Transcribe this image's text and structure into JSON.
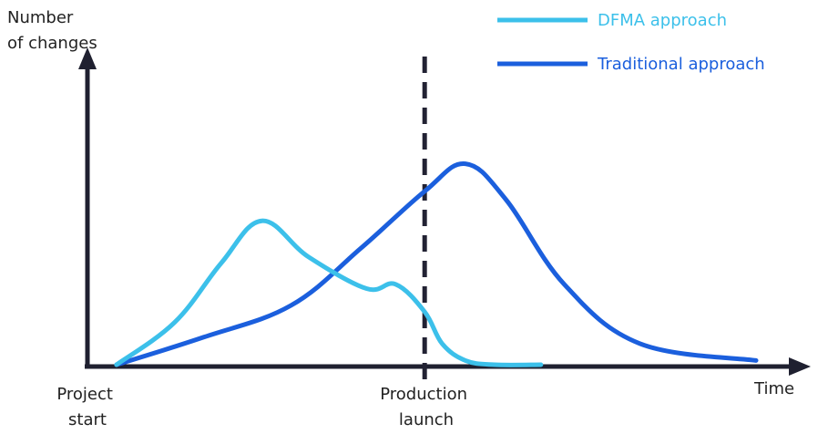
{
  "chart_data": {
    "type": "line",
    "y_axis_label": [
      "Number",
      "of changes"
    ],
    "x_axis_label": "Time",
    "x_ticks": [
      {
        "lines": [
          "Project",
          "start"
        ],
        "at": 0
      },
      {
        "lines": [
          "Production",
          "launch"
        ],
        "at": 58
      }
    ],
    "x_range": [
      0,
      115
    ],
    "y_range": [
      0,
      100
    ],
    "grid": false,
    "legend_position": "top-right",
    "series": [
      {
        "name": "DFMA approach",
        "color": "#3cc0ea",
        "x": [
          5,
          15,
          23,
          30,
          38,
          48,
          53,
          58,
          61,
          65,
          70,
          78
        ],
        "y": [
          0,
          20,
          48,
          68,
          51,
          36,
          38,
          25,
          10,
          2,
          0,
          0
        ]
      },
      {
        "name": "Traditional approach",
        "color": "#1b5fdd",
        "x": [
          5,
          20,
          35,
          47,
          58,
          65,
          72,
          82,
          95,
          115
        ],
        "y": [
          0,
          13,
          28,
          55,
          82,
          95,
          78,
          38,
          10,
          2
        ]
      }
    ],
    "annotations": [
      {
        "type": "vertical-dashed-line",
        "x": 58,
        "color": "#222233"
      }
    ]
  }
}
